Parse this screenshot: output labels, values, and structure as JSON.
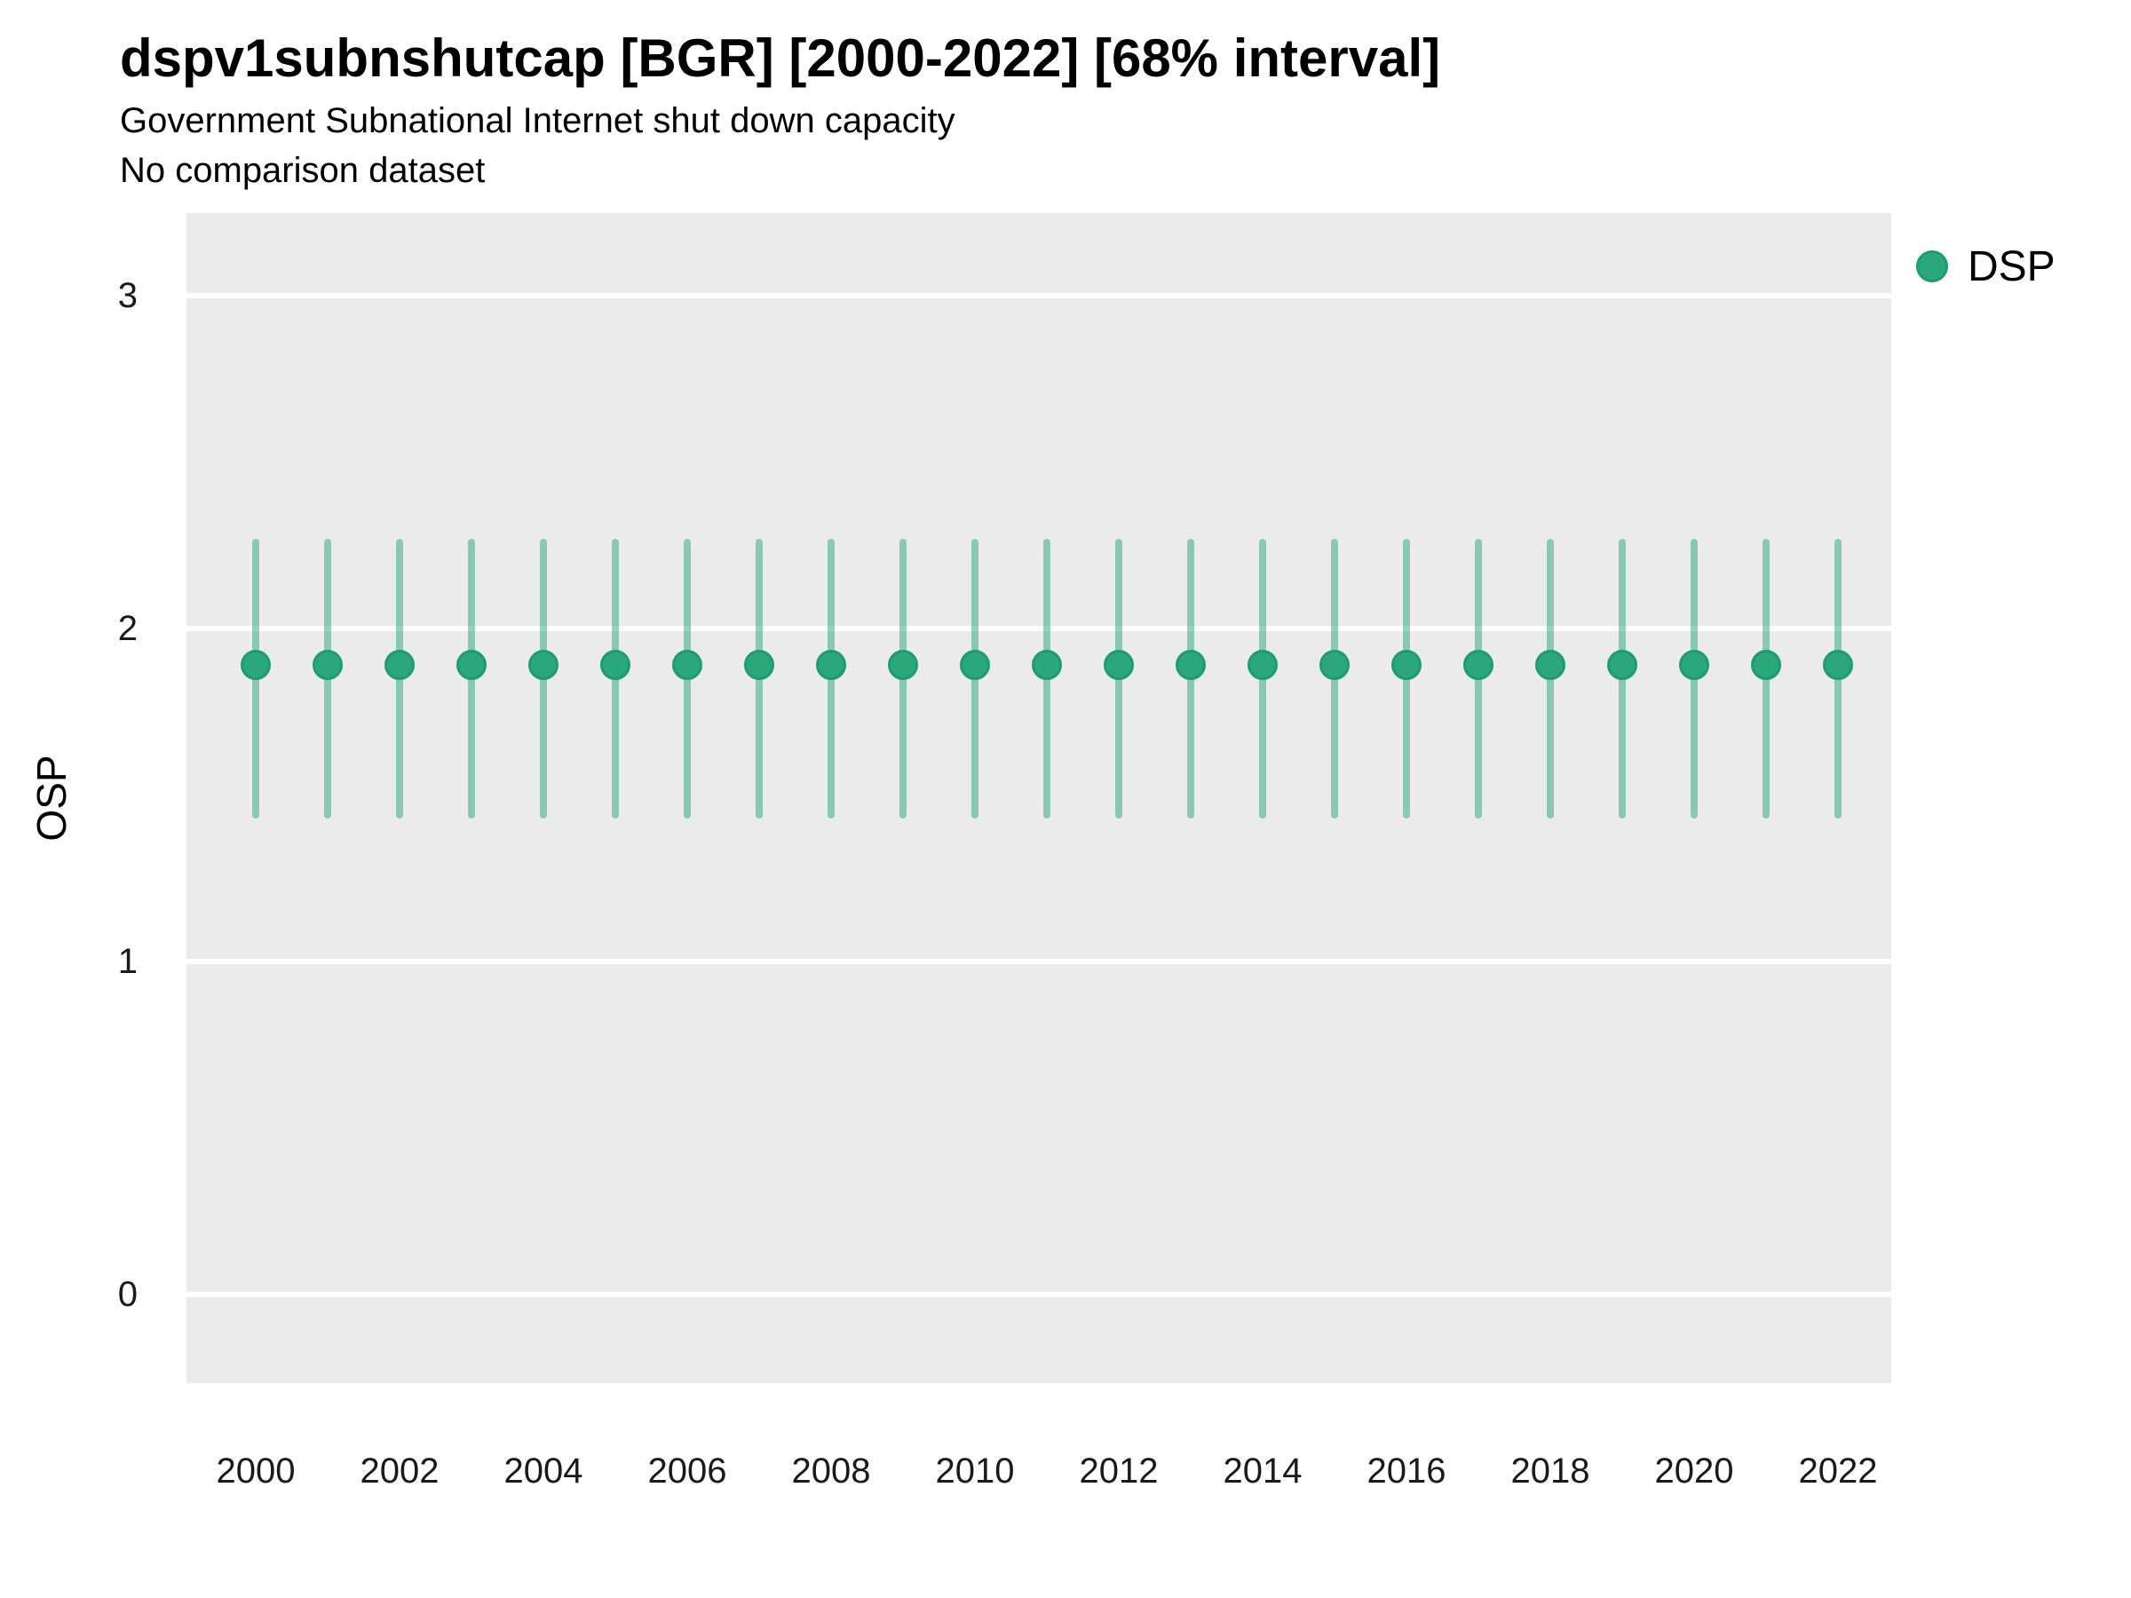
{
  "chart_data": {
    "type": "scatter",
    "title": "dspv1subnshutcap [BGR] [2000-2022] [68% interval]",
    "subtitle": "Government Subnational Internet shut down capacity",
    "note": "No comparison dataset",
    "ylabel": "OSP",
    "xlabel": "",
    "ylim": [
      -0.27,
      3.25
    ],
    "yticks": [
      0,
      1,
      2,
      3
    ],
    "xticks": [
      2000,
      2002,
      2004,
      2006,
      2008,
      2010,
      2012,
      2014,
      2016,
      2018,
      2020,
      2022
    ],
    "x": [
      2000,
      2001,
      2002,
      2003,
      2004,
      2005,
      2006,
      2007,
      2008,
      2009,
      2010,
      2011,
      2012,
      2013,
      2014,
      2015,
      2016,
      2017,
      2018,
      2019,
      2020,
      2021,
      2022
    ],
    "series": [
      {
        "name": "DSP",
        "interval_level": "68%",
        "values": [
          1.89,
          1.89,
          1.89,
          1.89,
          1.89,
          1.89,
          1.89,
          1.89,
          1.89,
          1.89,
          1.89,
          1.89,
          1.89,
          1.89,
          1.89,
          1.89,
          1.89,
          1.89,
          1.89,
          1.89,
          1.89,
          1.89,
          1.89
        ],
        "interval_low": [
          1.43,
          1.43,
          1.43,
          1.43,
          1.43,
          1.43,
          1.43,
          1.43,
          1.43,
          1.43,
          1.43,
          1.43,
          1.43,
          1.43,
          1.43,
          1.43,
          1.43,
          1.43,
          1.43,
          1.43,
          1.43,
          1.43,
          1.43
        ],
        "interval_high": [
          2.27,
          2.27,
          2.27,
          2.27,
          2.27,
          2.27,
          2.27,
          2.27,
          2.27,
          2.27,
          2.27,
          2.27,
          2.27,
          2.27,
          2.27,
          2.27,
          2.27,
          2.27,
          2.27,
          2.27,
          2.27,
          2.27,
          2.27
        ]
      }
    ],
    "grid": "major horizontal white lines on grey panel",
    "legend_position": "right-top"
  },
  "legend": {
    "label": "DSP"
  },
  "colors": {
    "panel_bg": "#EBEBEB",
    "grid": "#FFFFFF",
    "point": "#2AA87B",
    "point_border": "#1E9C6F",
    "interval": "rgba(42,168,120,0.5)",
    "tick_text": "#1A1A1A",
    "title_text": "#000000"
  }
}
